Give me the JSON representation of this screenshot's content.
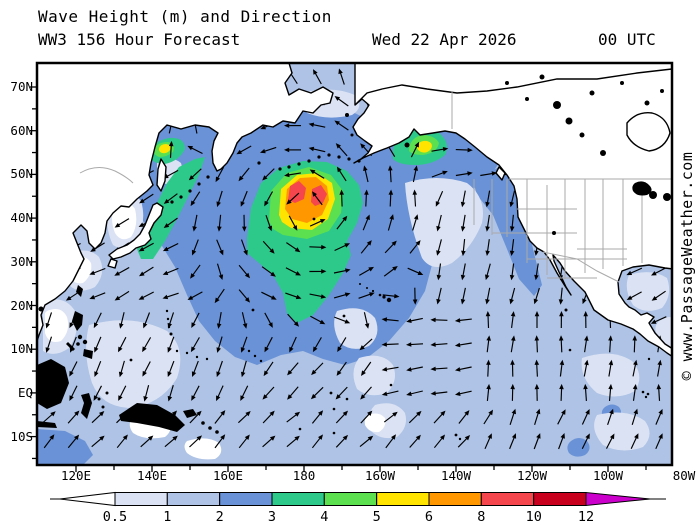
{
  "title": {
    "line1": "Wave Height (m) and Direction",
    "line2_left": "WW3 156 Hour Forecast",
    "line2_date": "Wed 22 Apr 2026",
    "line2_time": "00 UTC"
  },
  "watermark": "© www.PassageWeather.com",
  "axes": {
    "lat_labels": [
      "70N",
      "60N",
      "50N",
      "40N",
      "30N",
      "20N",
      "10N",
      "EQ",
      "10S"
    ],
    "lon_labels": [
      "120E",
      "140E",
      "160E",
      "180",
      "160W",
      "140W",
      "120W",
      "100W",
      "80W"
    ]
  },
  "legend": {
    "tick_labels": [
      "0.5",
      "1",
      "2",
      "3",
      "4",
      "5",
      "6",
      "8",
      "10",
      "12"
    ],
    "band_colors": [
      "#dbe2f4",
      "#aec3e5",
      "#6a92d6",
      "#2dc98b",
      "#5ce04f",
      "#ffe400",
      "#ff9800",
      "#f5464d",
      "#c8001e"
    ],
    "under_color": "#ffffff",
    "over_color": "#cb00cb"
  },
  "map_data": {
    "type": "filled_contour_map_with_vectors",
    "field": "Significant wave height (m) with wave direction arrows",
    "model": "WW3",
    "forecast_hour": 156,
    "region": "Pacific Ocean",
    "lon_span": "about 110E eastward to 80W",
    "lat_span": "about 15S to 75N",
    "wave_height_bands_m": [
      "<0.5",
      "0.5-1",
      "1-2",
      "2-3",
      "3-4",
      "4-5",
      "5-6",
      "6-8",
      "8-10",
      "10-12",
      ">12"
    ],
    "features": [
      {
        "name": "central-pacific-storm",
        "approx_location": "43N 178E",
        "peak_band_m": "8-10",
        "description": "Large cyclonic storm west of the Date Line with counterclockwise wave arrows; concentric 3/4/5/6/8 m contour rings and a 3-4 m swath trailing southeast"
      },
      {
        "name": "gulf-of-alaska-storm",
        "approx_location": "56N 149W",
        "peak_band_m": "5-6",
        "description": "Secondary storm in the Gulf of Alaska with a small 5-6 m core inside 3-4 m seas"
      },
      {
        "name": "sea-of-okhotsk-storm",
        "approx_location": "56N 143E",
        "peak_band_m": "5-6",
        "description": "Small 5-6 m spot within 3-4 m seas in the northern Sea of Okhotsk"
      },
      {
        "name": "kuril-japan-band",
        "approx_location": "east of Japan and the Kurils",
        "peak_band_m": "3-4",
        "description": "Band of 3-4 m seas running northeast along the Kuril/Japan coast"
      },
      {
        "name": "north-pacific-background",
        "peak_band_m": "2-3",
        "description": "Broad 2-3 m seas across the mid-latitude North Pacific and down the California coast"
      },
      {
        "name": "tropical-pacific",
        "peak_band_m": "1-2",
        "description": "1-2 m trade-wind seas; arrows southwest in the west, northward swell toward Mexico/Central America in the east, northeast south of the Equator"
      }
    ]
  }
}
